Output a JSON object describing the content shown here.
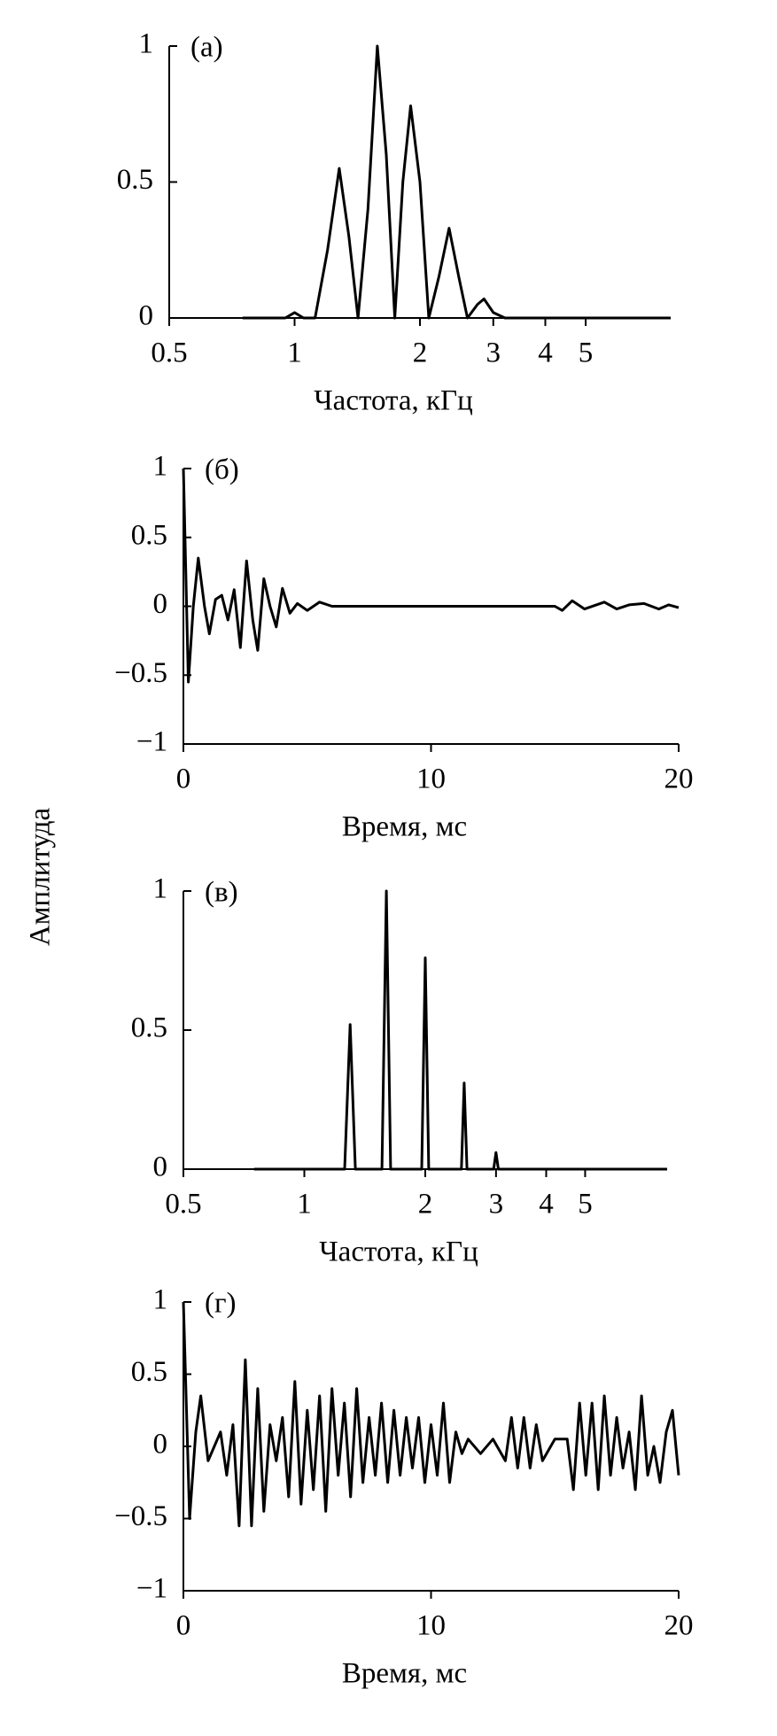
{
  "ylabel": "Амплитуда",
  "chart_data": [
    {
      "type": "line",
      "label": "(а)",
      "xlabel": "Частота, кГц",
      "xscale": "log",
      "color": "#000000",
      "xlim": [
        0.5,
        8
      ],
      "xticks": [
        0.5,
        1,
        2,
        3,
        4,
        5
      ],
      "ylim": [
        0,
        1
      ],
      "yticks": [
        0,
        0.5,
        1
      ],
      "x": [
        0.75,
        0.95,
        1.0,
        1.05,
        1.12,
        1.2,
        1.28,
        1.35,
        1.42,
        1.5,
        1.58,
        1.66,
        1.74,
        1.82,
        1.9,
        2.0,
        2.1,
        2.22,
        2.35,
        2.48,
        2.6,
        2.75,
        2.85,
        3.0,
        3.2,
        8
      ],
      "values": [
        0,
        0,
        0.02,
        0,
        0,
        0.25,
        0.55,
        0.3,
        0,
        0.4,
        1.0,
        0.6,
        0,
        0.5,
        0.78,
        0.5,
        0,
        0.15,
        0.33,
        0.15,
        0,
        0.05,
        0.07,
        0.02,
        0,
        0
      ]
    },
    {
      "type": "line",
      "label": "(б)",
      "xlabel": "Время, мс",
      "color": "#000000",
      "xlim": [
        0,
        20
      ],
      "xticks": [
        0,
        10,
        20
      ],
      "ylim": [
        -1,
        1
      ],
      "yticks": [
        {
          "value": -1,
          "label": "−1"
        },
        {
          "value": -0.5,
          "label": "−0.5"
        },
        0,
        0.5,
        1
      ],
      "x": [
        0,
        0.2,
        0.4,
        0.6,
        0.85,
        1.05,
        1.3,
        1.55,
        1.8,
        2.05,
        2.3,
        2.55,
        2.8,
        3.0,
        3.25,
        3.5,
        3.75,
        4.0,
        4.3,
        4.6,
        5.0,
        5.5,
        6,
        15,
        15.3,
        15.7,
        16.2,
        17,
        17.5,
        18,
        18.6,
        19.2,
        19.6,
        20
      ],
      "values": [
        1,
        -0.55,
        0,
        0.35,
        0,
        -0.2,
        0.05,
        0.08,
        -0.1,
        0.12,
        -0.3,
        0.33,
        -0.1,
        -0.32,
        0.2,
        0,
        -0.15,
        0.13,
        -0.05,
        0.02,
        -0.03,
        0.03,
        0,
        0,
        -0.03,
        0.04,
        -0.02,
        0.03,
        -0.02,
        0.01,
        0.02,
        -0.02,
        0.01,
        -0.01
      ]
    },
    {
      "type": "line",
      "label": "(в)",
      "xlabel": "Частота, кГц",
      "xscale": "log",
      "color": "#000000",
      "xlim": [
        0.5,
        8
      ],
      "xticks": [
        0.5,
        1,
        2,
        3,
        4,
        5
      ],
      "ylim": [
        0,
        1
      ],
      "yticks": [
        0,
        0.5,
        1
      ],
      "x": [
        0.75,
        1.26,
        1.3,
        1.34,
        1.56,
        1.6,
        1.64,
        1.96,
        2.0,
        2.04,
        2.46,
        2.5,
        2.54,
        2.96,
        3.0,
        3.04,
        8
      ],
      "values": [
        0,
        0,
        0.52,
        0,
        0,
        1.0,
        0,
        0,
        0.76,
        0,
        0,
        0.31,
        0,
        0,
        0.06,
        0,
        0
      ]
    },
    {
      "type": "line",
      "label": "(г)",
      "xlabel": "Время, мс",
      "color": "#000000",
      "xlim": [
        0,
        20
      ],
      "xticks": [
        0,
        10,
        20
      ],
      "ylim": [
        -1,
        1
      ],
      "yticks": [
        {
          "value": -1,
          "label": "−1"
        },
        {
          "value": -0.5,
          "label": "−0.5"
        },
        0,
        0.5,
        1
      ],
      "x": [
        0,
        0.25,
        0.5,
        0.7,
        1.0,
        1.25,
        1.5,
        1.75,
        2.0,
        2.25,
        2.5,
        2.75,
        3.0,
        3.25,
        3.5,
        3.75,
        4.0,
        4.25,
        4.5,
        4.75,
        5.0,
        5.25,
        5.5,
        5.75,
        6.0,
        6.25,
        6.5,
        6.75,
        7.0,
        7.25,
        7.5,
        7.75,
        8.0,
        8.25,
        8.5,
        8.75,
        9.0,
        9.25,
        9.5,
        9.75,
        10.0,
        10.25,
        10.5,
        10.75,
        11.0,
        11.25,
        11.5,
        12,
        12.5,
        13,
        13.25,
        13.5,
        13.75,
        14,
        14.25,
        14.5,
        15,
        15.5,
        15.75,
        16,
        16.25,
        16.5,
        16.75,
        17,
        17.25,
        17.5,
        17.75,
        18,
        18.25,
        18.5,
        18.75,
        19,
        19.25,
        19.5,
        19.75,
        20
      ],
      "values": [
        1,
        -0.5,
        0.1,
        0.35,
        -0.1,
        0,
        0.1,
        -0.2,
        0.15,
        -0.55,
        0.6,
        -0.55,
        0.4,
        -0.45,
        0.15,
        -0.1,
        0.2,
        -0.35,
        0.45,
        -0.4,
        0.25,
        -0.3,
        0.35,
        -0.45,
        0.4,
        -0.2,
        0.3,
        -0.35,
        0.4,
        -0.25,
        0.2,
        -0.2,
        0.3,
        -0.25,
        0.25,
        -0.2,
        0.2,
        -0.15,
        0.2,
        -0.25,
        0.15,
        -0.2,
        0.3,
        -0.25,
        0.1,
        -0.05,
        0.05,
        -0.05,
        0.05,
        -0.1,
        0.2,
        -0.15,
        0.2,
        -0.15,
        0.15,
        -0.1,
        0.05,
        0.05,
        -0.3,
        0.3,
        -0.2,
        0.3,
        -0.3,
        0.35,
        -0.2,
        0.2,
        -0.15,
        0.1,
        -0.3,
        0.35,
        -0.2,
        0,
        -0.25,
        0.1,
        0.25,
        -0.2
      ]
    }
  ]
}
